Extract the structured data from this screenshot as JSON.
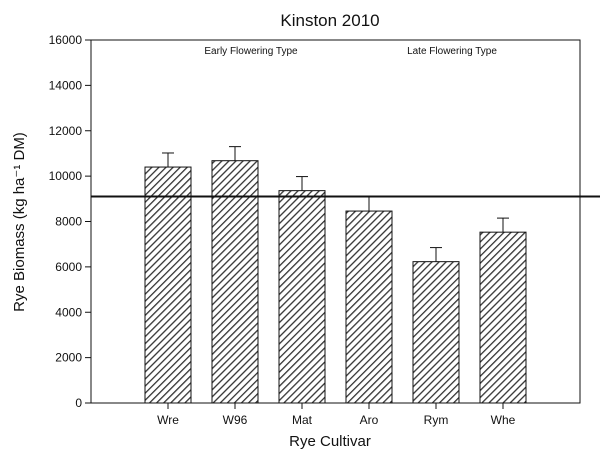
{
  "chart_data": {
    "type": "bar",
    "title": "Kinston 2010",
    "xlabel": "Rye Cultivar",
    "ylabel": "Rye Biomass (kg ha⁻¹ DM)",
    "ylim": [
      0,
      16000
    ],
    "yticks": [
      0,
      2000,
      4000,
      6000,
      8000,
      10000,
      12000,
      14000,
      16000
    ],
    "categories": [
      "Wre",
      "W96",
      "Mat",
      "Aro",
      "Rym",
      "Whe"
    ],
    "values": [
      10400,
      10680,
      9360,
      8460,
      6230,
      7530
    ],
    "errors": [
      620,
      620,
      620,
      620,
      620,
      620
    ],
    "reference_line": 9100,
    "grid": false,
    "bar_fill": "hatched",
    "annotations": [
      {
        "text": "Early Flowering Type",
        "x_between": [
          "W96",
          "W96"
        ]
      },
      {
        "text": "Late Flowering Type",
        "x_between": [
          "Rym",
          "Rym"
        ]
      }
    ]
  }
}
